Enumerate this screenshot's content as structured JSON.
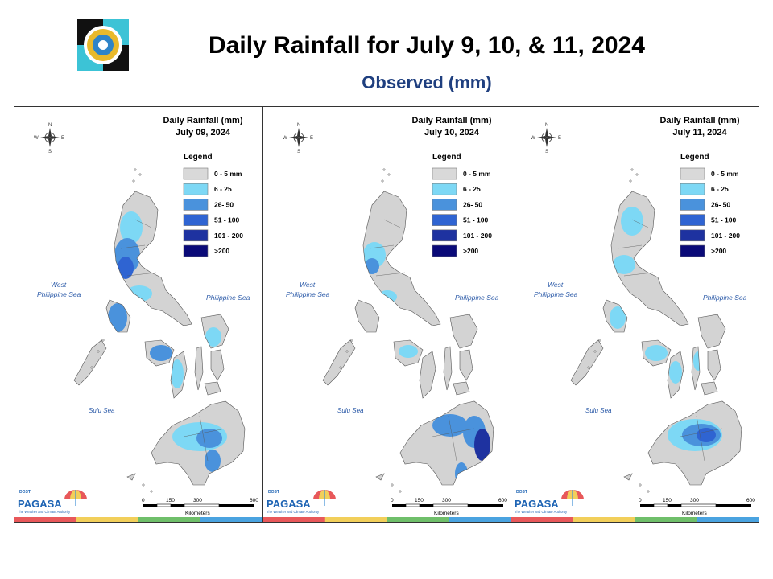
{
  "header": {
    "title": "Daily Rainfall for July 9, 10, & 11, 2024",
    "subtitle": "Observed (mm)"
  },
  "panels": [
    {
      "title_line1": "Daily Rainfall (mm)",
      "title_line2": "July 09, 2024"
    },
    {
      "title_line1": "Daily Rainfall (mm)",
      "title_line2": "July 10, 2024"
    },
    {
      "title_line1": "Daily Rainfall (mm)",
      "title_line2": "July 11, 2024"
    }
  ],
  "legend": {
    "title": "Legend",
    "classes": [
      {
        "label": "0 - 5 mm",
        "color": "#d9d9d9"
      },
      {
        "label": "6 - 25",
        "color": "#7dd8f5"
      },
      {
        "label": "26- 50",
        "color": "#4a92dc"
      },
      {
        "label": "51 - 100",
        "color": "#2f64d2"
      },
      {
        "label": "101 - 200",
        "color": "#1e32a0"
      },
      {
        "label": ">200",
        "color": "#0a0a78"
      }
    ]
  },
  "map_labels": {
    "west_sea_line1": "West",
    "west_sea_line2": "Philippine Sea",
    "east_sea": "Philippine Sea",
    "south_sea": "Sulu Sea",
    "compass": {
      "n": "N",
      "s": "S",
      "e": "E",
      "w": "W"
    }
  },
  "scale_bar": {
    "ticks": [
      "0",
      "150",
      "300",
      "600"
    ],
    "unit": "Kilometers"
  },
  "branding": {
    "dost": "DOST",
    "name": "PAGASA",
    "tagline": "The Weather and Climate Authority",
    "stripe_colors": [
      "#e8585a",
      "#f2cf5a",
      "#6fbf6a",
      "#4aa3e0"
    ]
  },
  "rainfall_highlights": [
    {
      "date": "July 09, 2024",
      "regions": [
        {
          "area": "Northern Luzon",
          "class": "6 - 25",
          "color": "#7dd8f5"
        },
        {
          "area": "Central Luzon",
          "class": "51 - 100",
          "color": "#2f64d2"
        },
        {
          "area": "Mindoro",
          "class": "26- 50",
          "color": "#4a92dc"
        },
        {
          "area": "Panay",
          "class": "26- 50",
          "color": "#4a92dc"
        },
        {
          "area": "Mindanao",
          "class": "26- 50",
          "color": "#4a92dc"
        }
      ]
    },
    {
      "date": "July 10, 2024",
      "regions": [
        {
          "area": "Central Luzon",
          "class": "26- 50",
          "color": "#4a92dc"
        },
        {
          "area": "Panay",
          "class": "6 - 25",
          "color": "#7dd8f5"
        },
        {
          "area": "Eastern Mindanao",
          "class": "101 - 200",
          "color": "#1e32a0"
        }
      ]
    },
    {
      "date": "July 11, 2024",
      "regions": [
        {
          "area": "Northern Luzon",
          "class": "6 - 25",
          "color": "#7dd8f5"
        },
        {
          "area": "Visayas",
          "class": "6 - 25",
          "color": "#7dd8f5"
        },
        {
          "area": "Central Mindanao",
          "class": "51 - 100",
          "color": "#2f64d2"
        }
      ]
    }
  ]
}
